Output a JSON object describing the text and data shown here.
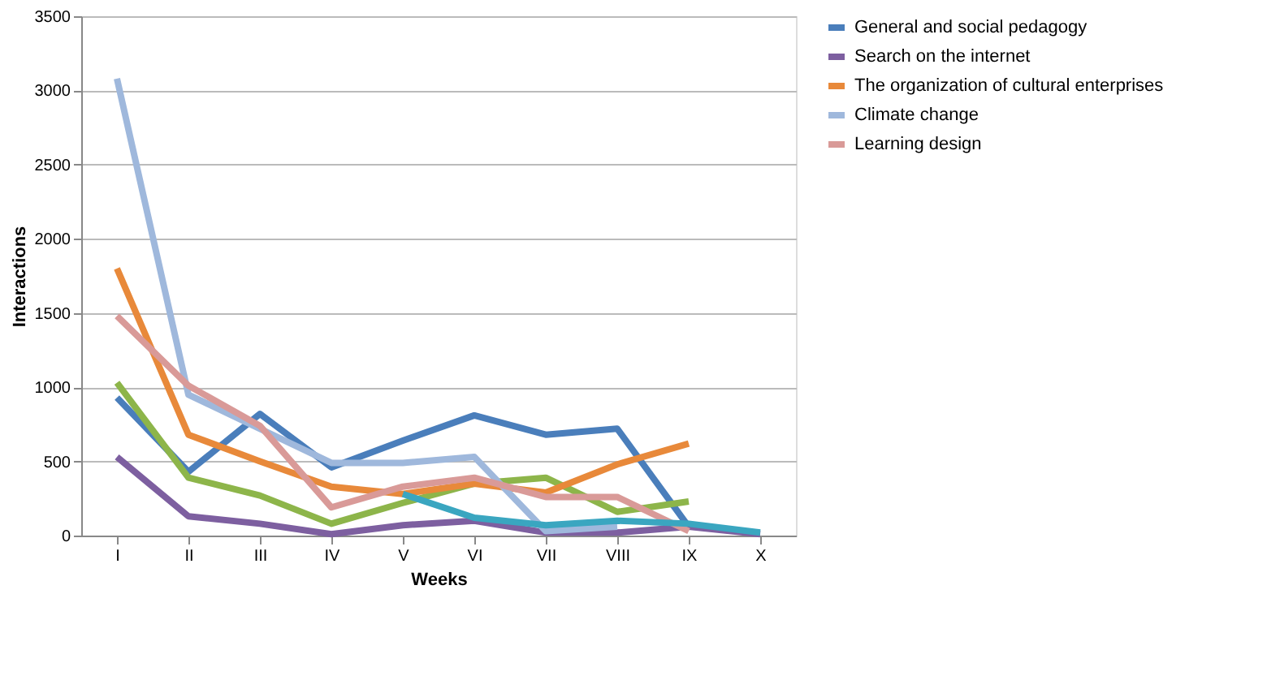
{
  "chart_data": {
    "type": "line",
    "xlabel": "Weeks",
    "ylabel": "Interactions",
    "categories": [
      "I",
      "II",
      "III",
      "IV",
      "V",
      "VI",
      "VII",
      "VIII",
      "IX",
      "X"
    ],
    "ylim": [
      0,
      3500
    ],
    "yticks": [
      0,
      500,
      1000,
      1500,
      2000,
      2500,
      3000,
      3500
    ],
    "grid": "y",
    "legend": "right",
    "marker": "none",
    "line_style": "solid",
    "series": [
      {
        "name": "General and social pedagogy",
        "color": "#4a7ebb",
        "values": [
          930,
          430,
          820,
          460,
          640,
          810,
          680,
          720,
          60,
          null
        ]
      },
      {
        "color": "#8db54a",
        "values": [
          1030,
          390,
          270,
          80,
          220,
          350,
          390,
          160,
          230,
          null
        ]
      },
      {
        "name": "Search on the internet",
        "color": "#7d5fa0",
        "values": [
          530,
          130,
          80,
          10,
          70,
          100,
          20,
          20,
          60,
          10
        ]
      },
      {
        "name": "The organization of cultural enterprises",
        "color": "#e8893a",
        "values": [
          1800,
          680,
          500,
          330,
          280,
          350,
          290,
          480,
          620,
          null
        ]
      },
      {
        "name": "Climate change",
        "color": "#9fb8dc",
        "values": [
          3080,
          950,
          720,
          490,
          490,
          530,
          30,
          60,
          null,
          null
        ]
      },
      {
        "name": "Learning design",
        "color": "#d99a98",
        "values": [
          1480,
          1010,
          740,
          190,
          330,
          390,
          260,
          260,
          30,
          null
        ]
      },
      {
        "color": "#3aa6c0",
        "values": [
          null,
          null,
          null,
          null,
          280,
          120,
          70,
          100,
          80,
          20
        ]
      }
    ]
  }
}
